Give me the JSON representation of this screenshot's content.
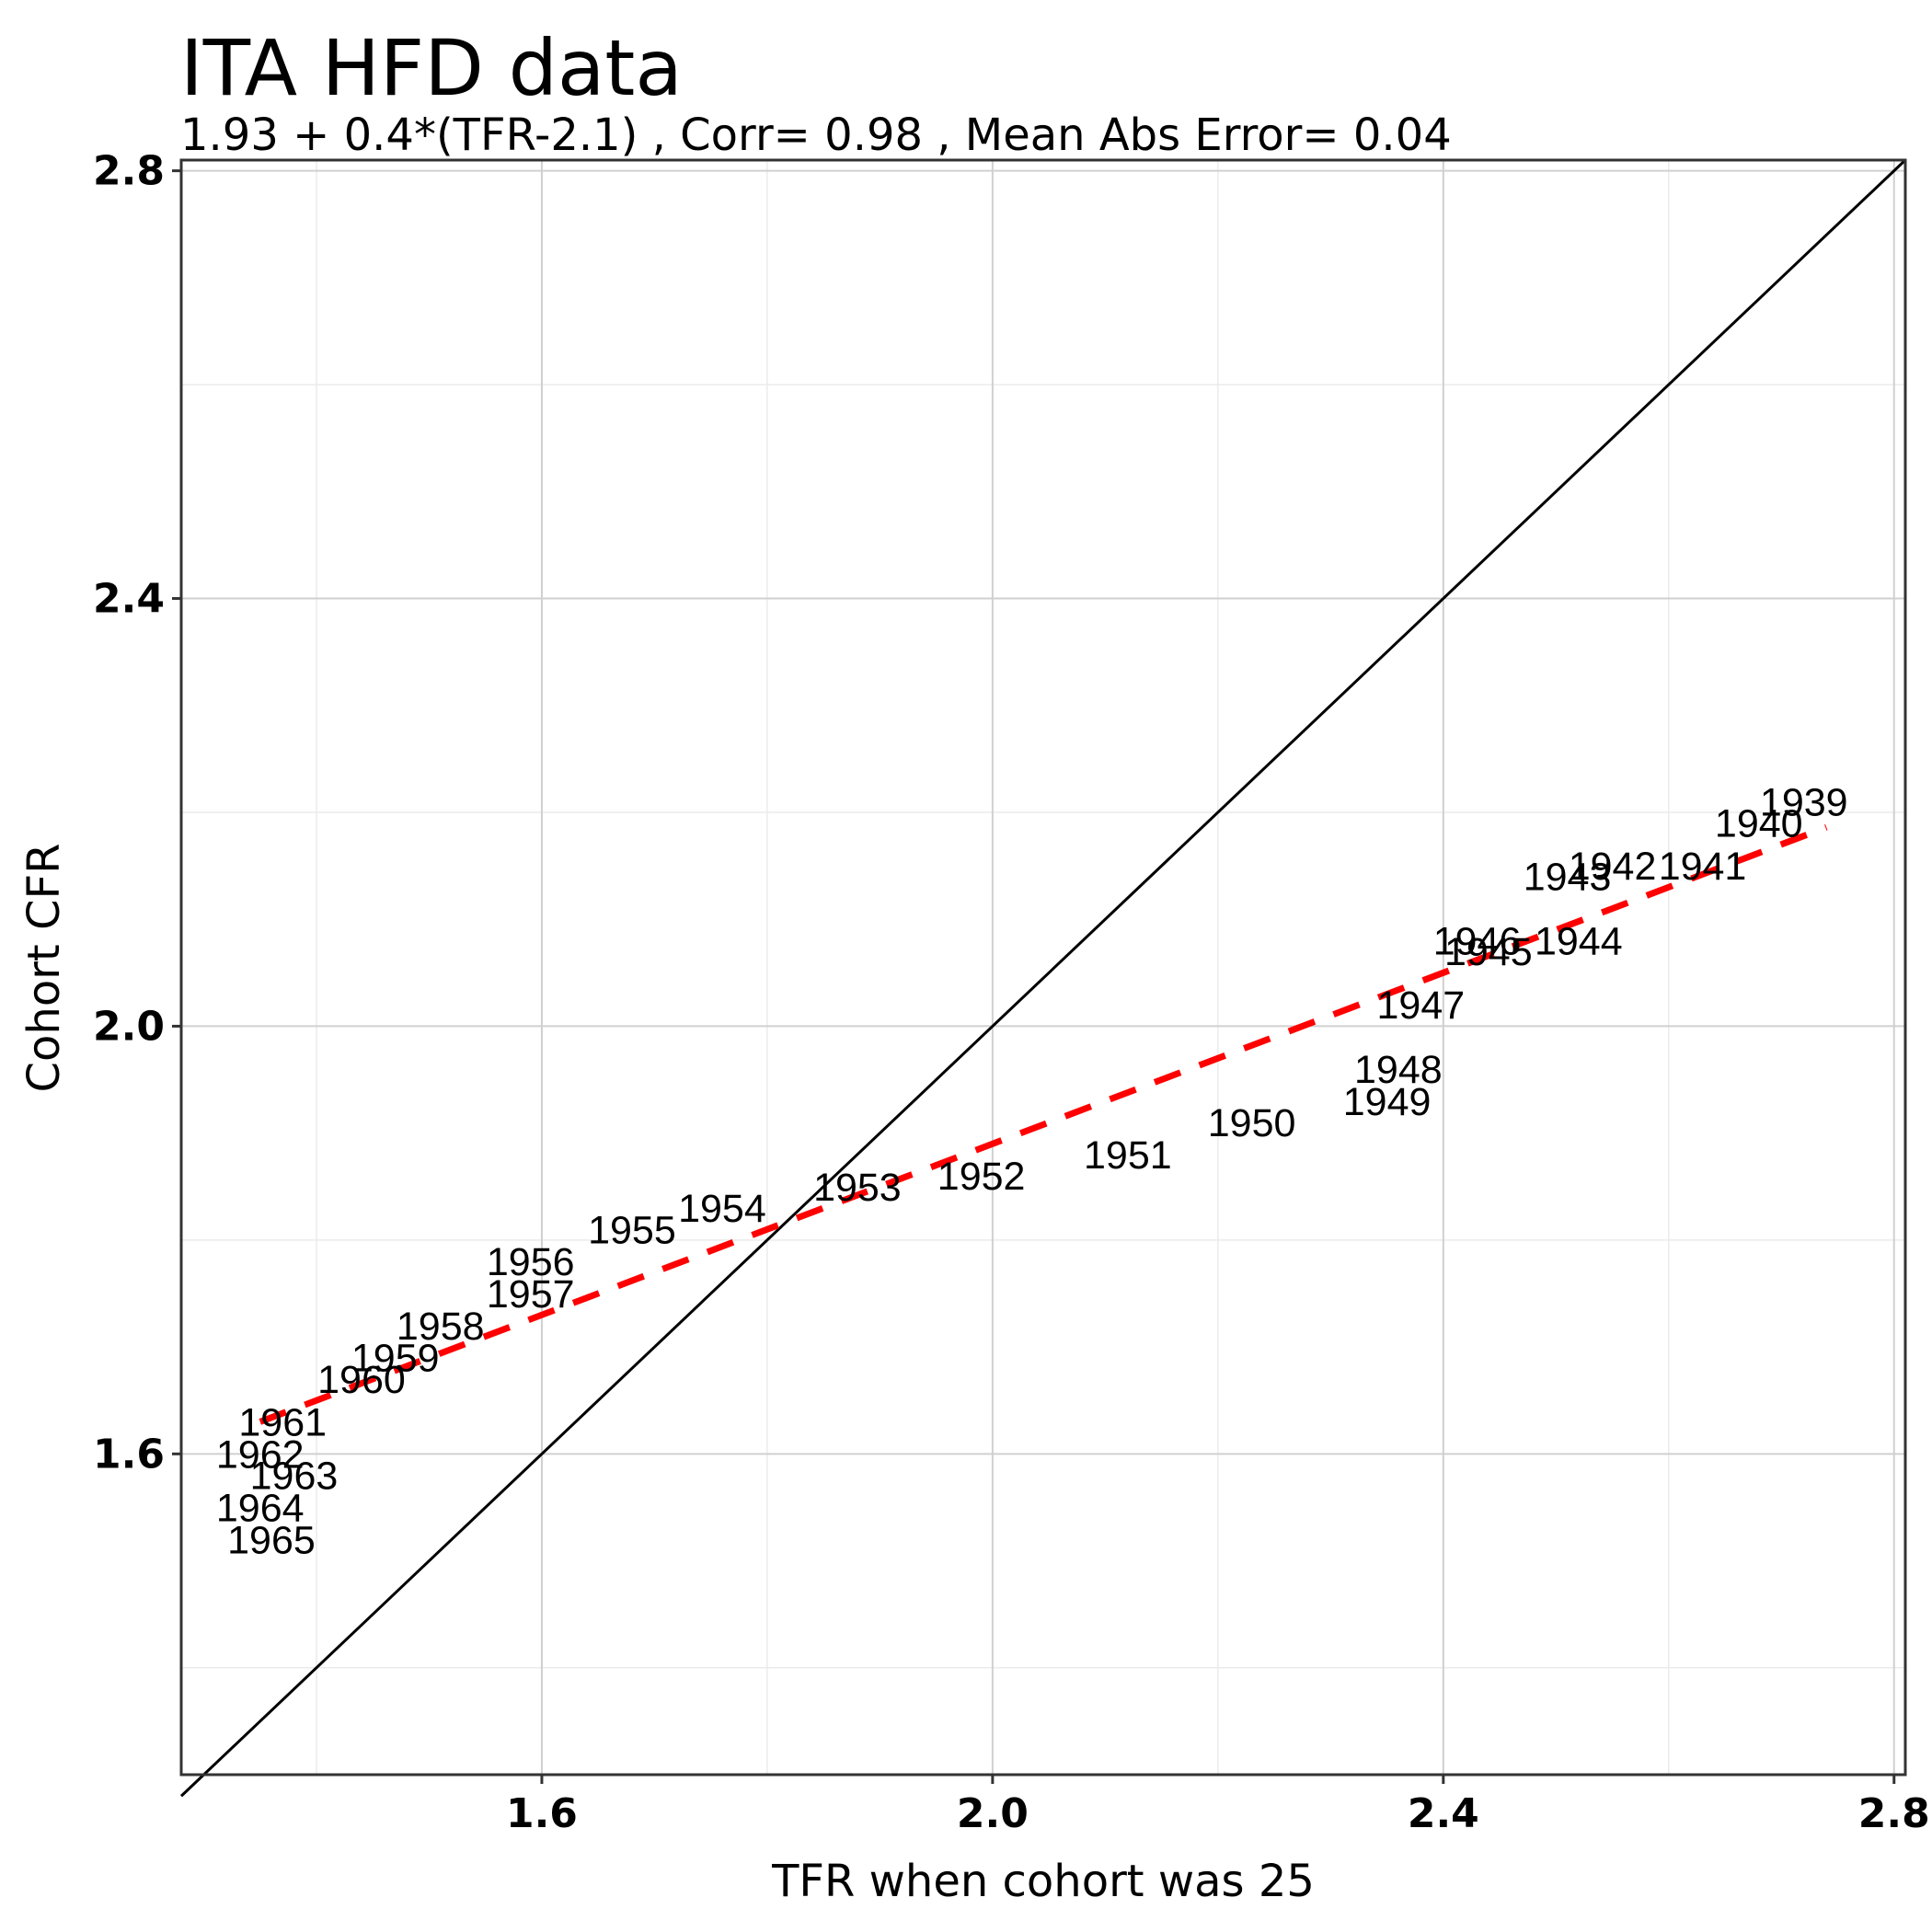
{
  "chart_data": {
    "type": "scatter",
    "title": "ITA HFD data",
    "subtitle": "1.93 + 0.4*(TFR-2.1)  , Corr= 0.98 , Mean Abs Error= 0.04",
    "xlabel": "TFR when cohort was 25",
    "ylabel": "Cohort CFR",
    "xlim": [
      1.28,
      2.81
    ],
    "ylim": [
      1.3,
      2.81
    ],
    "xticks": [
      "1.6",
      "2.0",
      "2.4",
      "2.8"
    ],
    "yticks": [
      "1.6",
      "2.0",
      "2.4",
      "2.8"
    ],
    "grid": true,
    "points": [
      {
        "label": "1939",
        "x": 2.72,
        "y": 2.21
      },
      {
        "label": "1940",
        "x": 2.68,
        "y": 2.19
      },
      {
        "label": "1941",
        "x": 2.63,
        "y": 2.15
      },
      {
        "label": "1942",
        "x": 2.55,
        "y": 2.15
      },
      {
        "label": "1943",
        "x": 2.51,
        "y": 2.14
      },
      {
        "label": "1944",
        "x": 2.52,
        "y": 2.08
      },
      {
        "label": "1945",
        "x": 2.44,
        "y": 2.07
      },
      {
        "label": "1946",
        "x": 2.43,
        "y": 2.08
      },
      {
        "label": "1947",
        "x": 2.38,
        "y": 2.02
      },
      {
        "label": "1948",
        "x": 2.36,
        "y": 1.96
      },
      {
        "label": "1949",
        "x": 2.35,
        "y": 1.93
      },
      {
        "label": "1950",
        "x": 2.23,
        "y": 1.91
      },
      {
        "label": "1951",
        "x": 2.12,
        "y": 1.88
      },
      {
        "label": "1952",
        "x": 1.99,
        "y": 1.86
      },
      {
        "label": "1953",
        "x": 1.88,
        "y": 1.85
      },
      {
        "label": "1954",
        "x": 1.76,
        "y": 1.83
      },
      {
        "label": "1955",
        "x": 1.68,
        "y": 1.81
      },
      {
        "label": "1956",
        "x": 1.59,
        "y": 1.78
      },
      {
        "label": "1957",
        "x": 1.59,
        "y": 1.75
      },
      {
        "label": "1958",
        "x": 1.51,
        "y": 1.72
      },
      {
        "label": "1959",
        "x": 1.47,
        "y": 1.69
      },
      {
        "label": "1960",
        "x": 1.44,
        "y": 1.67
      },
      {
        "label": "1961",
        "x": 1.37,
        "y": 1.63
      },
      {
        "label": "1962",
        "x": 1.35,
        "y": 1.6
      },
      {
        "label": "1963",
        "x": 1.38,
        "y": 1.58
      },
      {
        "label": "1964",
        "x": 1.35,
        "y": 1.55
      },
      {
        "label": "1965",
        "x": 1.36,
        "y": 1.52
      }
    ],
    "reference_line": {
      "name": "y = x",
      "color": "#000000",
      "from": [
        1.28,
        1.28
      ],
      "to": [
        2.81,
        2.81
      ]
    },
    "fit_line": {
      "intercept": 1.93,
      "slope": 0.4,
      "center": 2.1,
      "x_from": 1.35,
      "x_to": 2.74,
      "color": "#ff0000",
      "style": "dashed"
    }
  }
}
